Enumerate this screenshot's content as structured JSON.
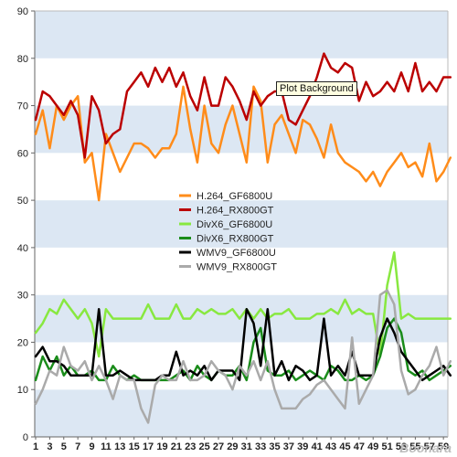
{
  "chart_data": {
    "type": "line",
    "title": "",
    "xlabel": "",
    "ylabel": "",
    "ylim": [
      0,
      90
    ],
    "yticks": [
      0,
      10,
      20,
      30,
      40,
      50,
      60,
      70,
      80,
      90
    ],
    "x": [
      1,
      2,
      3,
      4,
      5,
      6,
      7,
      8,
      9,
      10,
      11,
      12,
      13,
      14,
      15,
      16,
      17,
      18,
      19,
      20,
      21,
      22,
      23,
      24,
      25,
      26,
      27,
      28,
      29,
      30,
      31,
      32,
      33,
      34,
      35,
      36,
      37,
      38,
      39,
      40,
      41,
      42,
      43,
      44,
      45,
      46,
      47,
      48,
      49,
      50,
      51,
      52,
      53,
      54,
      55,
      56,
      57,
      58,
      59,
      60
    ],
    "xtick_labels": [
      "1",
      "3",
      "5",
      "7",
      "9",
      "11",
      "13",
      "15",
      "17",
      "19",
      "21",
      "23",
      "25",
      "27",
      "29",
      "31",
      "33",
      "35",
      "37",
      "39",
      "41",
      "43",
      "45",
      "47",
      "49",
      "51",
      "53",
      "55",
      "57",
      "59"
    ],
    "grid": "horizontal bands",
    "legend_position": "center-left",
    "series": [
      {
        "name": "H.264_GF6800U",
        "color": "#ff8c1a",
        "values": [
          64,
          69,
          61,
          70,
          67,
          70,
          72,
          58,
          60,
          50,
          64,
          60,
          56,
          59,
          62,
          62,
          61,
          59,
          61,
          61,
          64,
          74,
          65,
          58,
          70,
          62,
          60,
          66,
          70,
          64,
          58,
          74,
          71,
          58,
          66,
          68,
          64,
          60,
          67,
          66,
          63,
          59,
          66,
          60,
          58,
          57,
          56,
          54,
          56,
          53,
          56,
          58,
          60,
          57,
          58,
          55,
          62,
          54,
          56,
          59
        ]
      },
      {
        "name": "H.264_RX800GT",
        "color": "#bb0000",
        "values": [
          67,
          73,
          72,
          70,
          68,
          71,
          68,
          59,
          72,
          69,
          62,
          64,
          65,
          73,
          75,
          77,
          74,
          78,
          75,
          78,
          74,
          77,
          72,
          69,
          76,
          70,
          70,
          76,
          74,
          71,
          67,
          73,
          70,
          72,
          73,
          73,
          67,
          66,
          69,
          72,
          76,
          81,
          78,
          77,
          79,
          78,
          71,
          75,
          72,
          73,
          75,
          73,
          77,
          73,
          79,
          73,
          75,
          73,
          76,
          76
        ]
      },
      {
        "name": "DivX6_GF6800U",
        "color": "#88e840",
        "values": [
          22,
          24,
          27,
          26,
          29,
          27,
          25,
          27,
          24,
          17,
          27,
          25,
          25,
          25,
          25,
          25,
          28,
          25,
          25,
          25,
          28,
          25,
          25,
          27,
          26,
          27,
          26,
          26,
          27,
          25,
          27,
          25,
          27,
          25,
          26,
          26,
          27,
          25,
          25,
          25,
          26,
          26,
          27,
          26,
          29,
          26,
          27,
          26,
          26,
          17,
          32,
          39,
          25,
          26,
          25,
          25,
          25,
          25,
          25,
          25
        ]
      },
      {
        "name": "DivX6_RX800GT",
        "color": "#1a8c1a",
        "values": [
          12,
          17,
          14,
          17,
          13,
          15,
          13,
          13,
          14,
          12,
          12,
          15,
          13,
          12,
          13,
          12,
          12,
          12,
          12,
          12,
          13,
          14,
          12,
          15,
          13,
          12,
          14,
          13,
          13,
          15,
          12,
          20,
          23,
          14,
          13,
          13,
          14,
          12,
          13,
          14,
          13,
          12,
          15,
          14,
          12,
          12,
          13,
          12,
          13,
          17,
          23,
          25,
          22,
          14,
          13,
          14,
          12,
          13,
          14,
          15
        ]
      },
      {
        "name": "WMV9_GF6800U",
        "color": "#000000",
        "values": [
          17,
          19,
          16,
          16,
          15,
          13,
          13,
          13,
          13,
          27,
          13,
          13,
          14,
          13,
          12,
          12,
          12,
          12,
          13,
          13,
          18,
          13,
          14,
          13,
          15,
          12,
          14,
          14,
          14,
          12,
          27,
          24,
          15,
          27,
          13,
          16,
          12,
          15,
          14,
          12,
          13,
          25,
          13,
          15,
          13,
          18,
          13,
          13,
          13,
          21,
          25,
          22,
          18,
          16,
          14,
          12,
          13,
          14,
          15,
          13
        ]
      },
      {
        "name": "WMV9_RX800GT",
        "color": "#aaaaaa",
        "values": [
          7,
          10,
          14,
          13,
          19,
          15,
          14,
          16,
          12,
          15,
          12,
          8,
          13,
          12,
          12,
          6,
          3,
          11,
          13,
          12,
          12,
          16,
          12,
          12,
          13,
          16,
          14,
          13,
          10,
          15,
          13,
          16,
          12,
          16,
          10,
          6,
          6,
          6,
          8,
          9,
          11,
          12,
          10,
          8,
          6,
          21,
          7,
          10,
          13,
          30,
          31,
          28,
          14,
          9,
          10,
          13,
          15,
          19,
          13,
          16
        ]
      }
    ]
  }
}
